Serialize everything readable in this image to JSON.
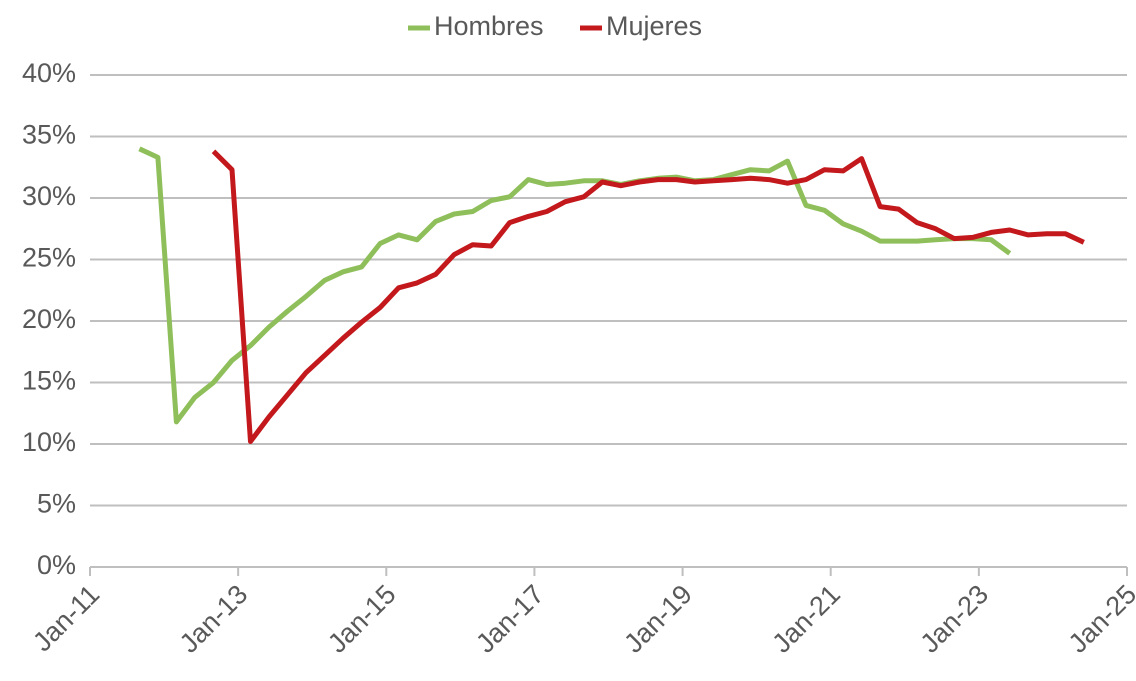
{
  "chart_data": {
    "type": "line",
    "legend": "top",
    "grid": true,
    "xlim": [
      "2011-01",
      "2025-01"
    ],
    "xticks": [
      {
        "value": "2011-01",
        "label": "Jan-11"
      },
      {
        "value": "2013-01",
        "label": "Jan-13"
      },
      {
        "value": "2015-01",
        "label": "Jan-15"
      },
      {
        "value": "2017-01",
        "label": "Jan-17"
      },
      {
        "value": "2019-01",
        "label": "Jan-19"
      },
      {
        "value": "2021-01",
        "label": "Jan-21"
      },
      {
        "value": "2023-01",
        "label": "Jan-23"
      },
      {
        "value": "2025-01",
        "label": "Jan-25"
      }
    ],
    "ylim": [
      0,
      40
    ],
    "yticks": [
      {
        "value": 0,
        "label": "0%"
      },
      {
        "value": 5,
        "label": "5%"
      },
      {
        "value": 10,
        "label": "10%"
      },
      {
        "value": 15,
        "label": "15%"
      },
      {
        "value": 20,
        "label": "20%"
      },
      {
        "value": 25,
        "label": "25%"
      },
      {
        "value": 30,
        "label": "30%"
      },
      {
        "value": 35,
        "label": "35%"
      },
      {
        "value": 40,
        "label": "40%"
      }
    ],
    "series": [
      {
        "name": "Hombres",
        "color": "#8fbf5a",
        "x": [
          "2011-09",
          "2011-12",
          "2012-03",
          "2012-06",
          "2012-09",
          "2012-12",
          "2013-03",
          "2013-06",
          "2013-09",
          "2013-12",
          "2014-03",
          "2014-06",
          "2014-09",
          "2014-12",
          "2015-03",
          "2015-06",
          "2015-09",
          "2015-12",
          "2016-03",
          "2016-06",
          "2016-09",
          "2016-12",
          "2017-03",
          "2017-06",
          "2017-09",
          "2017-12",
          "2018-03",
          "2018-06",
          "2018-09",
          "2018-12",
          "2019-03",
          "2019-06",
          "2019-09",
          "2019-12",
          "2020-03",
          "2020-06",
          "2020-09",
          "2020-12",
          "2021-03",
          "2021-06",
          "2021-09",
          "2021-12",
          "2022-03",
          "2022-06",
          "2022-09",
          "2022-12",
          "2023-03",
          "2023-06"
        ],
        "values": [
          34,
          33.3,
          11.8,
          13.8,
          15,
          16.8,
          18,
          19.5,
          20.8,
          22,
          23.3,
          24,
          24.4,
          26.3,
          27,
          26.6,
          28.1,
          28.7,
          28.9,
          29.8,
          30.1,
          31.5,
          31.1,
          31.2,
          31.4,
          31.4,
          31.1,
          31.4,
          31.6,
          31.7,
          31.4,
          31.5,
          31.9,
          32.3,
          32.2,
          33,
          29.4,
          29,
          27.9,
          27.3,
          26.5,
          26.5,
          26.5,
          26.6,
          26.7,
          26.7,
          26.6,
          25.5
        ]
      },
      {
        "name": "Mujeres",
        "color": "#c3181c",
        "x": [
          "2012-09",
          "2012-12",
          "2013-03",
          "2013-06",
          "2013-09",
          "2013-12",
          "2014-03",
          "2014-06",
          "2014-09",
          "2014-12",
          "2015-03",
          "2015-06",
          "2015-09",
          "2015-12",
          "2016-03",
          "2016-06",
          "2016-09",
          "2016-12",
          "2017-03",
          "2017-06",
          "2017-09",
          "2017-12",
          "2018-03",
          "2018-06",
          "2018-09",
          "2018-12",
          "2019-03",
          "2019-06",
          "2019-09",
          "2019-12",
          "2020-03",
          "2020-06",
          "2020-09",
          "2020-12",
          "2021-03",
          "2021-06",
          "2021-09",
          "2021-12",
          "2022-03",
          "2022-06",
          "2022-09",
          "2022-12",
          "2023-03",
          "2023-06",
          "2023-09",
          "2023-12",
          "2024-03",
          "2024-06"
        ],
        "values": [
          33.8,
          32.3,
          10.2,
          12.2,
          14,
          15.8,
          17.2,
          18.6,
          19.9,
          21.1,
          22.7,
          23.1,
          23.8,
          25.4,
          26.2,
          26.1,
          28,
          28.5,
          28.9,
          29.7,
          30.1,
          31.3,
          31,
          31.3,
          31.5,
          31.5,
          31.3,
          31.4,
          31.5,
          31.6,
          31.5,
          31.2,
          31.5,
          32.3,
          32.2,
          33.2,
          29.3,
          29.1,
          28,
          27.5,
          26.7,
          26.8,
          27.2,
          27.4,
          27,
          27.1,
          27.1,
          26.4
        ]
      }
    ]
  }
}
